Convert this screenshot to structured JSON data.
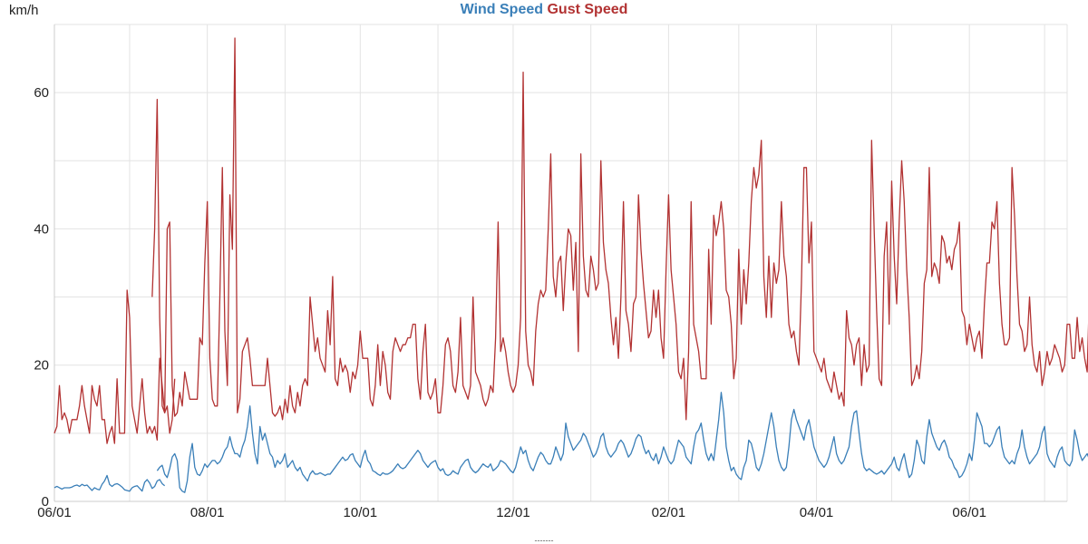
{
  "chart_data": {
    "type": "line",
    "title": "",
    "ylabel": "km/h",
    "xlabel": "",
    "x_start": "2024-06-01",
    "x_end": "2025-07-10",
    "ylim": [
      0,
      70
    ],
    "yticks": [
      0,
      20,
      40,
      60
    ],
    "xticks": [
      {
        "date": "2024-06-01",
        "label": "06/01"
      },
      {
        "date": "2024-08-01",
        "label": "08/01"
      },
      {
        "date": "2024-10-01",
        "label": "10/01"
      },
      {
        "date": "2024-12-01",
        "label": "12/01"
      },
      {
        "date": "2025-02-01",
        "label": "02/01"
      },
      {
        "date": "2025-04-01",
        "label": "04/01"
      },
      {
        "date": "2025-06-01",
        "label": "06/01"
      }
    ],
    "grid": true,
    "legend_position": "top-center",
    "footer": "-------",
    "series": [
      {
        "name": "Wind Speed",
        "color": "#3a7fb8",
        "segments": [
          {
            "start": "2024-06-01",
            "values": [
              2,
              2.2,
              2,
              1.8,
              2,
              2,
              2,
              2.1,
              2.3,
              2.4,
              2.2,
              2.5,
              2.3,
              2.4,
              2,
              1.6,
              2,
              1.8,
              1.7,
              2.5,
              3,
              3.8,
              2.5,
              2.2,
              2.5,
              2.6,
              2.4,
              2.1,
              1.7,
              1.6,
              1.5,
              2,
              2.2,
              2.3,
              1.9,
              1.5,
              2.8,
              3.2,
              2.7,
              1.9,
              2.2,
              3,
              3.2,
              2.6,
              2.3
            ]
          },
          {
            "start": "2024-07-12",
            "values": [
              4.5,
              5,
              5.3,
              4,
              3.5,
              4.8,
              6.5,
              7,
              6,
              2,
              1.5,
              1.3,
              3,
              6.5,
              8.5,
              5,
              4,
              3.8,
              4.5,
              5.5,
              5,
              5.5,
              6,
              6,
              5.5,
              5.8,
              6.5,
              7.5,
              8,
              9.5,
              8,
              7,
              7,
              6.5,
              8,
              9,
              11,
              14,
              10,
              7,
              5.5,
              11,
              9,
              10,
              8.5,
              7,
              6.5,
              5,
              6,
              5.5,
              6,
              7,
              5,
              5.5,
              6,
              5,
              4.5,
              5,
              4,
              3.5,
              3,
              4,
              4.5,
              4,
              4,
              4.2,
              4,
              3.8,
              4,
              4,
              4.5,
              5,
              5.5,
              6,
              6.5,
              6,
              6.2,
              6.8,
              7,
              6,
              5.5,
              5,
              6.5,
              7.5,
              6,
              5.5,
              4.5,
              4.3,
              4,
              3.8,
              4.2,
              4,
              4,
              4.2,
              4.5,
              5,
              5.5,
              5,
              4.8,
              5,
              5.5,
              6,
              6.5,
              7,
              7.5,
              7,
              6,
              5.5,
              5,
              5.5,
              5.8,
              6,
              5,
              4.5,
              4.8,
              4,
              3.8,
              4,
              4.5,
              4.2,
              4,
              5,
              5.5,
              6,
              6.2,
              5,
              4.5,
              4.2,
              4.5,
              5,
              5.5,
              5.2,
              5,
              5.5,
              4.5,
              4.8,
              5.2,
              6,
              5.8,
              5.5,
              5,
              4.5,
              4.2,
              5,
              6.5,
              8,
              7,
              7.5,
              6,
              5,
              4.5,
              5.5,
              6.5,
              7.2,
              6.8,
              6,
              5.5,
              5.5,
              6.5,
              8,
              7,
              6,
              7,
              11.5,
              9.5,
              8.5,
              7.5,
              8,
              8.5,
              9,
              10,
              9.5,
              8.5,
              7.5,
              6.5,
              7,
              8,
              9.5,
              10,
              8,
              7,
              6.5,
              7,
              7.5,
              8.5,
              9,
              8.5,
              7.5,
              6.5,
              7,
              8,
              9.2,
              9.8,
              9.5,
              8,
              7,
              7.5,
              6.5,
              6,
              7,
              5.5,
              6.5,
              8,
              7,
              6,
              5.5,
              6,
              7.5,
              9,
              8.5,
              8,
              6.5,
              6,
              5.5,
              8,
              10,
              10.5,
              11.5,
              9,
              7,
              6,
              7,
              6,
              9,
              12,
              16,
              13,
              8,
              6,
              4.5,
              5,
              4,
              3.5,
              3.2,
              5,
              6,
              9,
              8.5,
              7,
              5,
              4.5,
              5.5,
              7,
              9,
              11,
              13,
              11,
              8,
              6,
              5,
              4.5,
              5,
              8,
              12,
              13.5,
              12,
              11,
              10,
              9,
              11,
              12,
              10,
              8,
              7,
              6,
              5.5,
              5,
              5.5,
              6.5,
              8,
              9.5,
              7,
              6,
              5.5,
              6,
              7,
              8,
              11,
              13,
              13.3,
              10,
              7,
              5,
              4.5,
              4.8,
              4.5,
              4.2,
              4,
              4.2,
              4.5,
              4,
              4.5,
              5,
              5.5,
              6.5,
              5,
              4.5,
              6,
              7,
              5,
              3.5,
              4,
              6,
              9,
              8,
              6,
              5.5,
              9.5,
              12,
              10,
              9,
              8,
              7.5,
              8.5,
              9,
              8,
              6.5,
              6,
              5,
              4.5,
              3.5,
              3.8,
              4.5,
              5.5,
              7,
              6,
              9,
              13,
              12,
              11,
              8.5,
              8.5,
              8,
              8.5,
              9.5,
              10.5,
              11,
              8,
              6.5,
              6,
              5.5,
              6,
              5.5,
              7,
              8,
              10.5,
              8,
              6.5,
              5.5,
              6,
              6.5,
              7,
              8,
              10,
              11,
              7,
              6,
              5.5,
              5,
              6.5,
              7.5,
              8,
              6,
              5.5,
              5.2,
              6,
              10.5,
              9,
              7,
              6,
              6.5,
              7,
              6,
              6.5,
              5.5,
              6,
              5.5,
              5,
              5.5,
              4.5,
              6,
              8,
              7,
              6.5,
              6,
              6.5,
              5.5,
              5,
              4.8,
              5.2,
              5.5,
              6,
              7,
              8,
              7.5,
              6.5,
              7,
              8.5,
              10.3,
              8,
              5.5,
              4.5,
              5,
              6.5,
              8,
              6,
              4.5,
              4.5
            ]
          }
        ]
      },
      {
        "name": "Gust Speed",
        "color": "#b23232",
        "segments": [
          {
            "start": "2024-06-01",
            "values": [
              10,
              11,
              17,
              12,
              13,
              12,
              10,
              12,
              12,
              12,
              14,
              17,
              14,
              12,
              10,
              17,
              15,
              14,
              17,
              12,
              12,
              8.5,
              10,
              11,
              8.5,
              18,
              10,
              10,
              10,
              31,
              27,
              14,
              12,
              10,
              14,
              18,
              13,
              10,
              11,
              10,
              11,
              9,
              21,
              17,
              13,
              14,
              10,
              12,
              18
            ]
          },
          {
            "start": "2024-07-10",
            "values": [
              30,
              40,
              59,
              27,
              14,
              13,
              40,
              41,
              17,
              12.5,
              13,
              16,
              14,
              19,
              17,
              15,
              15,
              15,
              15,
              24,
              23,
              35,
              44,
              21,
              15,
              14,
              14,
              30,
              49,
              25,
              17,
              45,
              37,
              68,
              13,
              15,
              22,
              23,
              24,
              21,
              17,
              17,
              17,
              17,
              17,
              17,
              21,
              17,
              13,
              12.5,
              13,
              14,
              12,
              15,
              13,
              17,
              14,
              13,
              16,
              14,
              17,
              18,
              17,
              30,
              26,
              22,
              24,
              21,
              20,
              19,
              28,
              23,
              33,
              18,
              17,
              21,
              19,
              20,
              19,
              16,
              19,
              18,
              20,
              25,
              21,
              21,
              21,
              15,
              14,
              17,
              23,
              17,
              22,
              20,
              16,
              15,
              22,
              24,
              23,
              22,
              23,
              23,
              24,
              24,
              26,
              26,
              18,
              15,
              22,
              26,
              16,
              15,
              16,
              18,
              13,
              13,
              17,
              23,
              24,
              22,
              17,
              16,
              19,
              27,
              17,
              16,
              15,
              17,
              30,
              19,
              18,
              17,
              15,
              14,
              15,
              17,
              16,
              24,
              41,
              22,
              24,
              22,
              19,
              17,
              16,
              17,
              20,
              27,
              63,
              25,
              20,
              19,
              17,
              25,
              29,
              31,
              30,
              31,
              40,
              51,
              33,
              30,
              35,
              36,
              28,
              35,
              40,
              39,
              31,
              38,
              22,
              51,
              36,
              31,
              30,
              36,
              34,
              31,
              32,
              50,
              38,
              34,
              32,
              27,
              23,
              27,
              21,
              30,
              44,
              28,
              26,
              22,
              29,
              30,
              45,
              37,
              32,
              28,
              24,
              25,
              31,
              27,
              31,
              24,
              21,
              34,
              45,
              34,
              30,
              26,
              19,
              18,
              21,
              12,
              22,
              44,
              26,
              24,
              22,
              18,
              18,
              18,
              37,
              26,
              42,
              39,
              41,
              44,
              40,
              31,
              30,
              26,
              18,
              21,
              37,
              26,
              34,
              29,
              35,
              44,
              49,
              46,
              48,
              53,
              33,
              27,
              36,
              27,
              35,
              32,
              34,
              44,
              36,
              33,
              26,
              24,
              25,
              22,
              20,
              32,
              49,
              49,
              35,
              41,
              22,
              21,
              20,
              19,
              21,
              18,
              17,
              16,
              19,
              17,
              15,
              16,
              14,
              28,
              24,
              23,
              20,
              23,
              24,
              17,
              23,
              19,
              20,
              53,
              40,
              28,
              18,
              17,
              36,
              41,
              26,
              47,
              36,
              29,
              41,
              50,
              44,
              34,
              27,
              17,
              18,
              20,
              18,
              22,
              32,
              34,
              49,
              33,
              35,
              34,
              32,
              39,
              38,
              35,
              36,
              34,
              37,
              38,
              41,
              28,
              27,
              23,
              26,
              24,
              22,
              24,
              25,
              21,
              29,
              35,
              35,
              41,
              40,
              44,
              32,
              26,
              23,
              23,
              24,
              49,
              42,
              33,
              26,
              25,
              22,
              23,
              30,
              23,
              20,
              19,
              22,
              17,
              19,
              22,
              20,
              21,
              23,
              22,
              21,
              19,
              20,
              26,
              26,
              21,
              21,
              27,
              22,
              24,
              21,
              19,
              32,
              30,
              26,
              23,
              31,
              23,
              21,
              21,
              37,
              31,
              15,
              17
            ]
          }
        ]
      }
    ]
  }
}
